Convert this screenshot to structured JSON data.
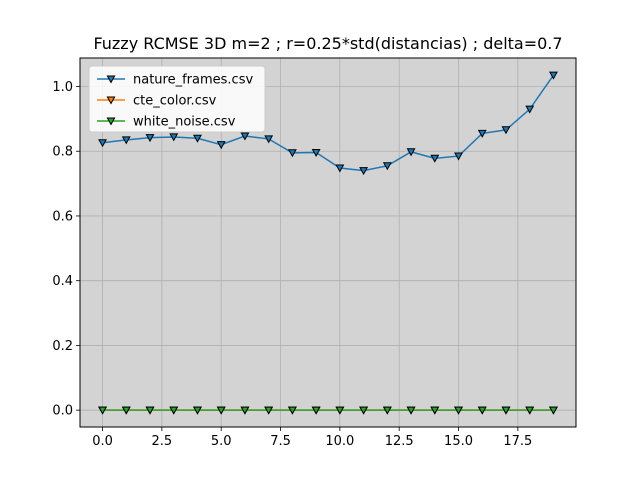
{
  "chart_data": {
    "type": "line",
    "title": "Fuzzy RCMSE 3D m=2 ; r=0.25*std(distancias) ; delta=0.7",
    "xlabel": "",
    "ylabel": "",
    "x": [
      0,
      1,
      2,
      3,
      4,
      5,
      6,
      7,
      8,
      9,
      10,
      11,
      12,
      13,
      14,
      15,
      16,
      17,
      18,
      19
    ],
    "xlim": [
      -0.95,
      19.95
    ],
    "ylim": [
      -0.052,
      1.088
    ],
    "x_ticks": [
      0.0,
      2.5,
      5.0,
      7.5,
      10.0,
      12.5,
      15.0,
      17.5
    ],
    "x_tick_labels": [
      "0.0",
      "2.5",
      "5.0",
      "7.5",
      "10.0",
      "12.5",
      "15.0",
      "17.5"
    ],
    "y_ticks": [
      0.0,
      0.2,
      0.4,
      0.6,
      0.8,
      1.0
    ],
    "y_tick_labels": [
      "0.0",
      "0.2",
      "0.4",
      "0.6",
      "0.8",
      "1.0"
    ],
    "grid": true,
    "legend_position": "top-left",
    "plot_background": "#d3d3d3",
    "marker": "triangle-down",
    "series": [
      {
        "name": "nature_frames.csv",
        "color": "#1f77b4",
        "values": [
          0.826,
          0.835,
          0.842,
          0.844,
          0.84,
          0.82,
          0.847,
          0.838,
          0.795,
          0.796,
          0.748,
          0.74,
          0.755,
          0.798,
          0.778,
          0.785,
          0.855,
          0.866,
          0.93,
          1.035
        ]
      },
      {
        "name": "cte_color.csv",
        "color": "#ff7f0e",
        "values": [
          0,
          0,
          0,
          0,
          0,
          0,
          0,
          0,
          0,
          0,
          0,
          0,
          0,
          0,
          0,
          0,
          0,
          0,
          0,
          0
        ]
      },
      {
        "name": "white_noise.csv",
        "color": "#2ca02c",
        "values": [
          0,
          0,
          0,
          0,
          0,
          0,
          0,
          0,
          0,
          0,
          0,
          0,
          0,
          0,
          0,
          0,
          0,
          0,
          0,
          0
        ]
      }
    ]
  }
}
